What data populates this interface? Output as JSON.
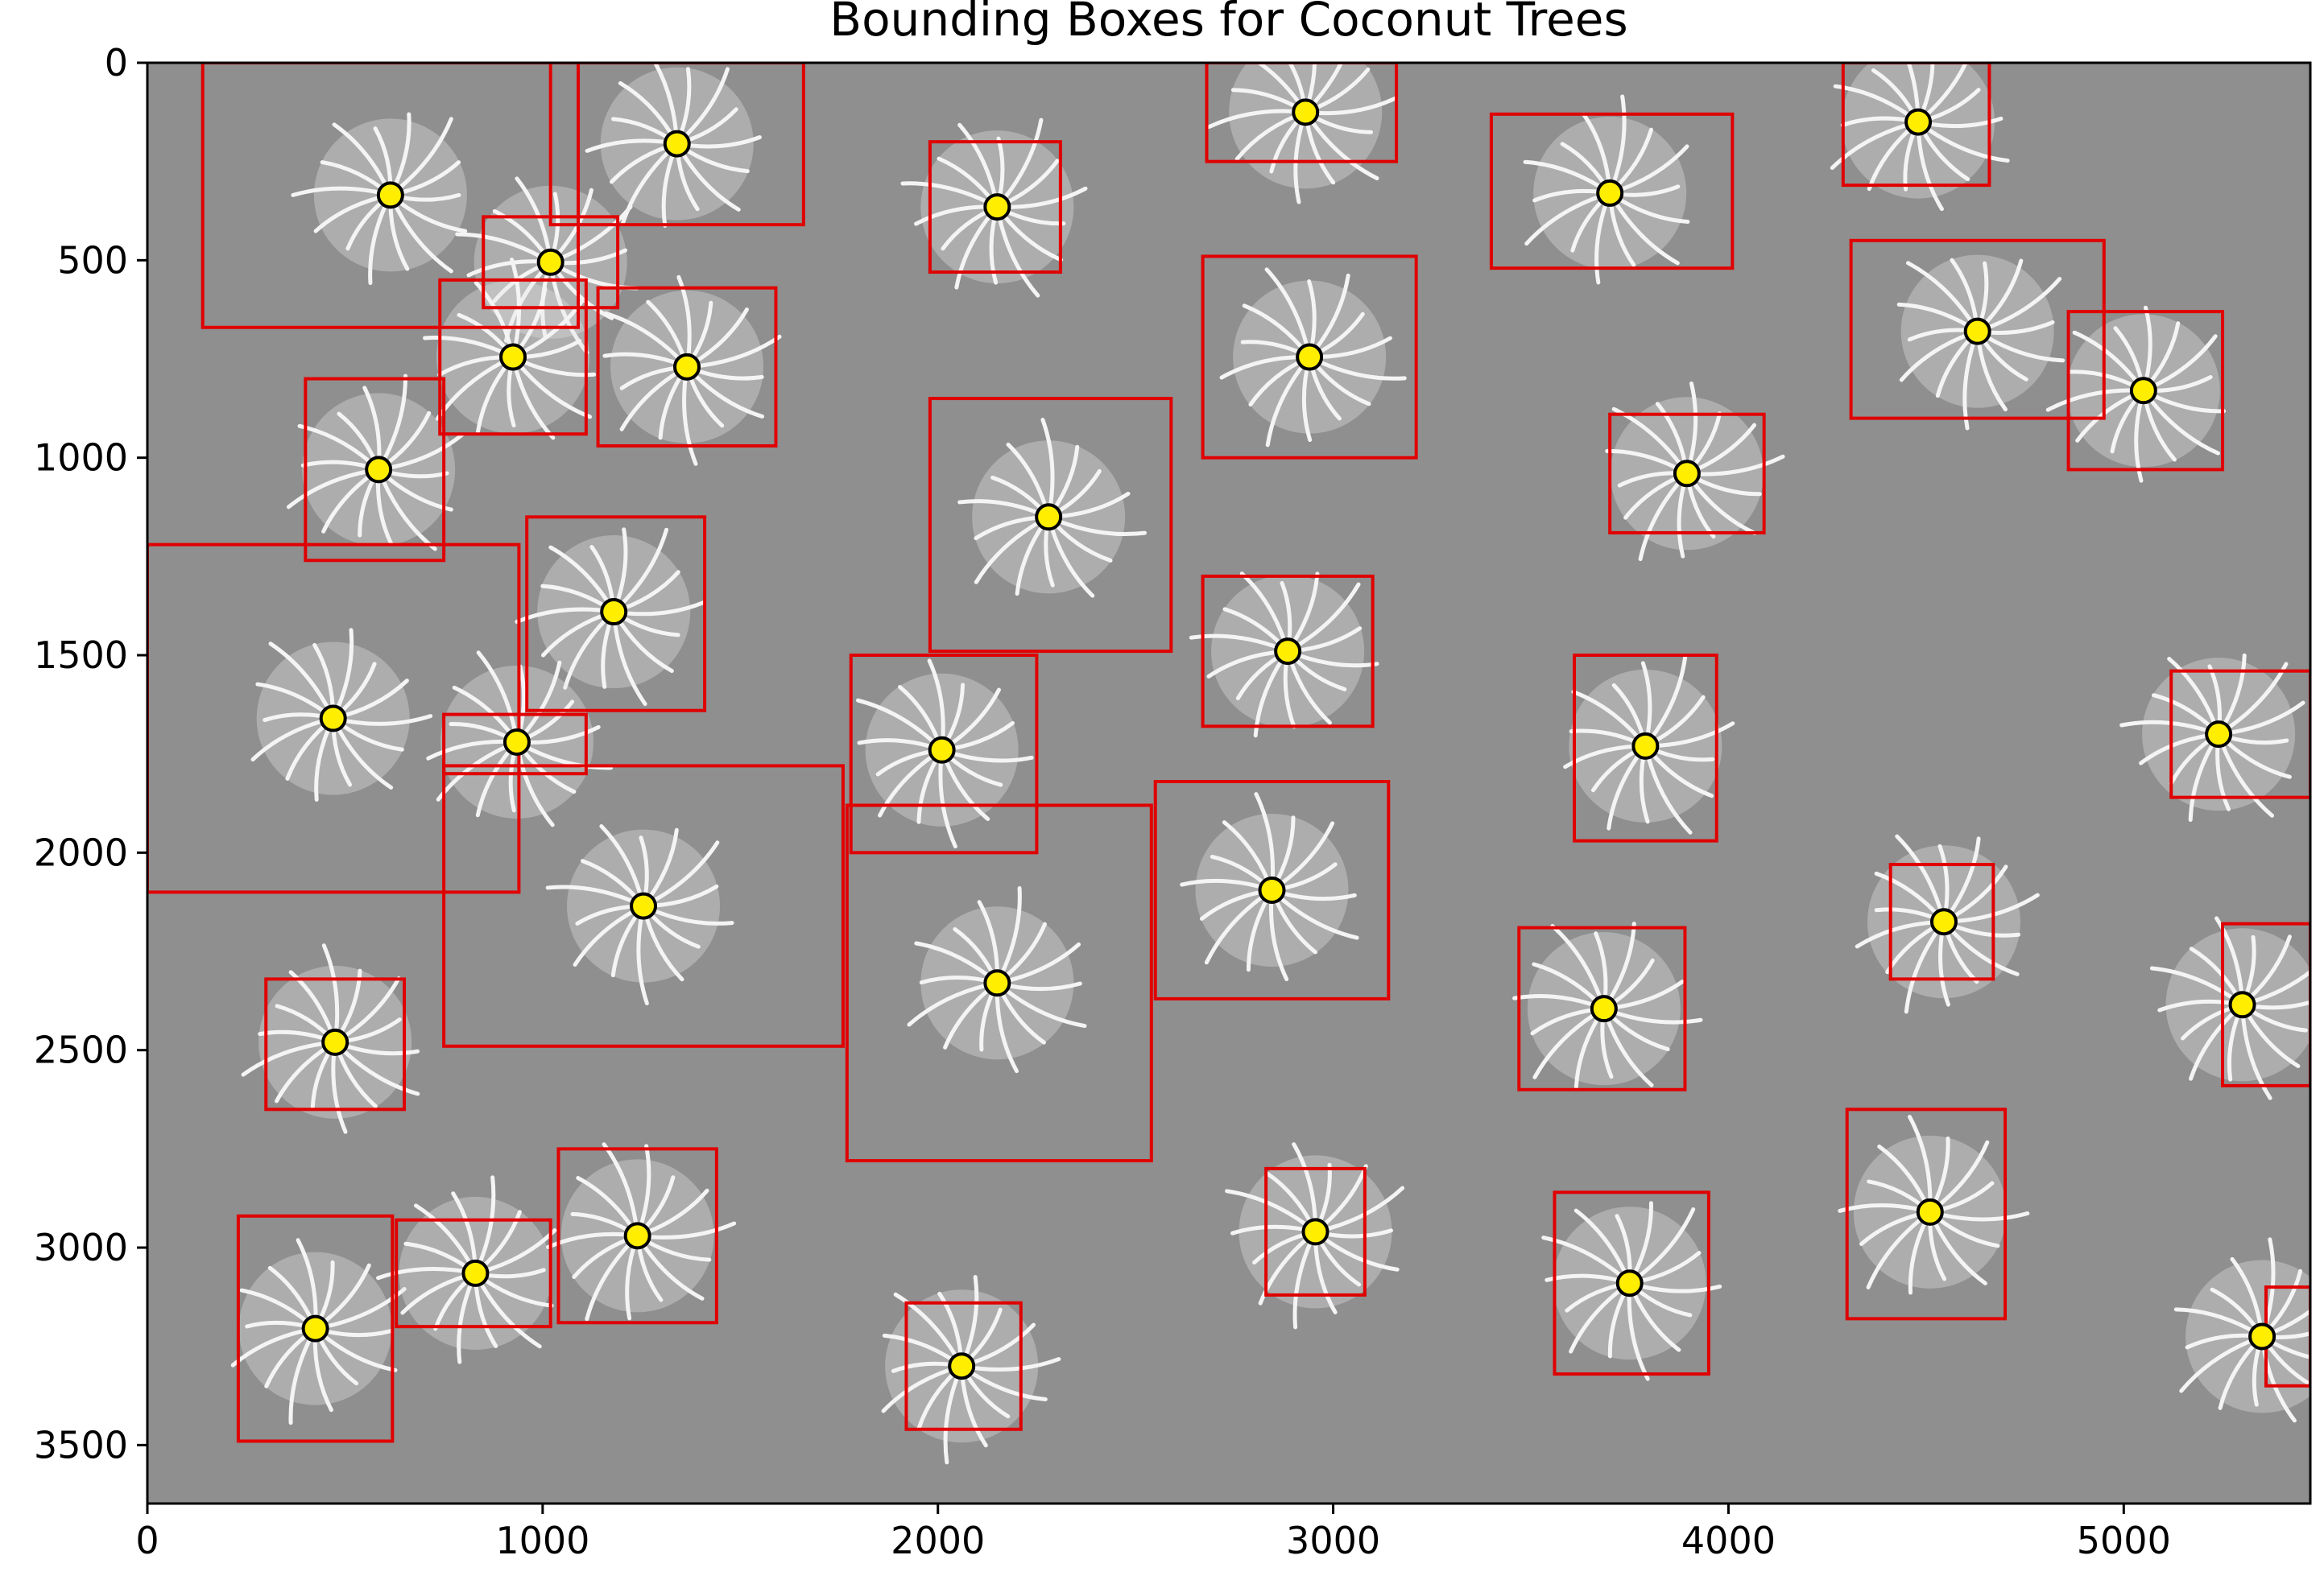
{
  "chart_data": {
    "type": "scatter",
    "title": "Bounding Boxes for Coconut Trees",
    "xlabel": "",
    "ylabel": "",
    "xlim": [
      0,
      5472
    ],
    "ylim": [
      3648,
      0
    ],
    "y_axis_inverted": true,
    "grid": false,
    "background": "grayscale aerial image of coconut palm plantation",
    "xticks": [
      0,
      1000,
      2000,
      3000,
      4000,
      5000
    ],
    "yticks": [
      0,
      500,
      1000,
      1500,
      2000,
      2500,
      3000,
      3500
    ],
    "box_color": "#e00000",
    "center_color": "#ffee00",
    "boxes": [
      {
        "x0": 140,
        "y0": 0,
        "x1": 1090,
        "y1": 670
      },
      {
        "x0": 1020,
        "y0": 0,
        "x1": 1660,
        "y1": 410
      },
      {
        "x0": 850,
        "y0": 390,
        "x1": 1190,
        "y1": 620
      },
      {
        "x0": 740,
        "y0": 550,
        "x1": 1110,
        "y1": 940
      },
      {
        "x0": 1140,
        "y0": 570,
        "x1": 1590,
        "y1": 970
      },
      {
        "x0": 400,
        "y0": 800,
        "x1": 750,
        "y1": 1260
      },
      {
        "x0": 0,
        "y0": 1220,
        "x1": 940,
        "y1": 2100
      },
      {
        "x0": 960,
        "y0": 1150,
        "x1": 1410,
        "y1": 1640
      },
      {
        "x0": 750,
        "y0": 1650,
        "x1": 1110,
        "y1": 1800
      },
      {
        "x0": 750,
        "y0": 1780,
        "x1": 1760,
        "y1": 2490
      },
      {
        "x0": 300,
        "y0": 2320,
        "x1": 650,
        "y1": 2650
      },
      {
        "x0": 230,
        "y0": 2920,
        "x1": 620,
        "y1": 3490
      },
      {
        "x0": 630,
        "y0": 2930,
        "x1": 1020,
        "y1": 3200
      },
      {
        "x0": 1040,
        "y0": 2750,
        "x1": 1440,
        "y1": 3190
      },
      {
        "x0": 1980,
        "y0": 200,
        "x1": 2310,
        "y1": 530
      },
      {
        "x0": 1980,
        "y0": 850,
        "x1": 2590,
        "y1": 1490
      },
      {
        "x0": 1780,
        "y0": 1500,
        "x1": 2250,
        "y1": 2000
      },
      {
        "x0": 1770,
        "y0": 1880,
        "x1": 2540,
        "y1": 2780
      },
      {
        "x0": 1920,
        "y0": 3140,
        "x1": 2210,
        "y1": 3460
      },
      {
        "x0": 2680,
        "y0": 0,
        "x1": 3160,
        "y1": 250
      },
      {
        "x0": 2670,
        "y0": 490,
        "x1": 3210,
        "y1": 1000
      },
      {
        "x0": 2670,
        "y0": 1300,
        "x1": 3100,
        "y1": 1680
      },
      {
        "x0": 2550,
        "y0": 1820,
        "x1": 3140,
        "y1": 2370
      },
      {
        "x0": 2830,
        "y0": 2800,
        "x1": 3080,
        "y1": 3120
      },
      {
        "x0": 3400,
        "y0": 130,
        "x1": 4010,
        "y1": 520
      },
      {
        "x0": 3700,
        "y0": 890,
        "x1": 4090,
        "y1": 1190
      },
      {
        "x0": 3610,
        "y0": 1500,
        "x1": 3970,
        "y1": 1970
      },
      {
        "x0": 3470,
        "y0": 2190,
        "x1": 3890,
        "y1": 2600
      },
      {
        "x0": 3560,
        "y0": 2860,
        "x1": 3950,
        "y1": 3320
      },
      {
        "x0": 4290,
        "y0": 0,
        "x1": 4660,
        "y1": 310
      },
      {
        "x0": 4310,
        "y0": 450,
        "x1": 4950,
        "y1": 900
      },
      {
        "x0": 4860,
        "y0": 630,
        "x1": 5250,
        "y1": 1030
      },
      {
        "x0": 4410,
        "y0": 2030,
        "x1": 4670,
        "y1": 2320
      },
      {
        "x0": 5120,
        "y0": 1540,
        "x1": 5472,
        "y1": 1860
      },
      {
        "x0": 4300,
        "y0": 2650,
        "x1": 4700,
        "y1": 3180
      },
      {
        "x0": 5250,
        "y0": 2180,
        "x1": 5472,
        "y1": 2590
      },
      {
        "x0": 5360,
        "y0": 3100,
        "x1": 5472,
        "y1": 3350
      }
    ],
    "centers": [
      {
        "x": 615,
        "y": 335
      },
      {
        "x": 1340,
        "y": 205
      },
      {
        "x": 1020,
        "y": 505
      },
      {
        "x": 925,
        "y": 745
      },
      {
        "x": 1365,
        "y": 770
      },
      {
        "x": 585,
        "y": 1030
      },
      {
        "x": 470,
        "y": 1660
      },
      {
        "x": 1180,
        "y": 1390
      },
      {
        "x": 935,
        "y": 1720
      },
      {
        "x": 1255,
        "y": 2135
      },
      {
        "x": 475,
        "y": 2480
      },
      {
        "x": 425,
        "y": 3205
      },
      {
        "x": 830,
        "y": 3065
      },
      {
        "x": 1240,
        "y": 2970
      },
      {
        "x": 2150,
        "y": 365
      },
      {
        "x": 2280,
        "y": 1150
      },
      {
        "x": 2010,
        "y": 1740
      },
      {
        "x": 2150,
        "y": 2330
      },
      {
        "x": 2060,
        "y": 3300
      },
      {
        "x": 2930,
        "y": 125
      },
      {
        "x": 2940,
        "y": 745
      },
      {
        "x": 2885,
        "y": 1490
      },
      {
        "x": 2845,
        "y": 2095
      },
      {
        "x": 2955,
        "y": 2960
      },
      {
        "x": 3700,
        "y": 330
      },
      {
        "x": 3895,
        "y": 1040
      },
      {
        "x": 3790,
        "y": 1730
      },
      {
        "x": 3685,
        "y": 2395
      },
      {
        "x": 3750,
        "y": 3090
      },
      {
        "x": 4480,
        "y": 150
      },
      {
        "x": 4630,
        "y": 680
      },
      {
        "x": 5050,
        "y": 830
      },
      {
        "x": 4545,
        "y": 2175
      },
      {
        "x": 5240,
        "y": 1700
      },
      {
        "x": 4510,
        "y": 2910
      },
      {
        "x": 5300,
        "y": 2385
      },
      {
        "x": 5350,
        "y": 3225
      }
    ]
  }
}
